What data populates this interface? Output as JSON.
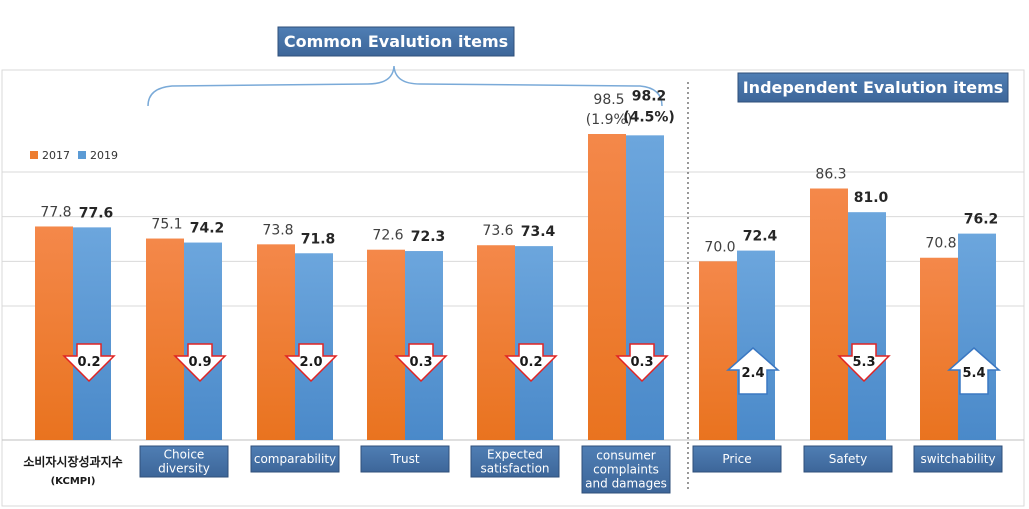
{
  "header_common": "Common Evalution items",
  "header_independent": "Independent Evalution items",
  "chart_data": {
    "type": "bar",
    "legend": {
      "position": "top-left"
    },
    "grid": true,
    "ylim": [
      30,
      100
    ],
    "colors": {
      "2017": "#ED7D31",
      "2019": "#5B9BD5"
    },
    "series": [
      {
        "name": "2017",
        "values": [
          77.8,
          75.1,
          73.8,
          72.6,
          73.6,
          98.5,
          70.0,
          86.3,
          70.8
        ]
      },
      {
        "name": "2019",
        "values": [
          77.6,
          74.2,
          71.8,
          72.3,
          73.4,
          98.2,
          72.4,
          81.0,
          76.2
        ]
      }
    ],
    "categories": [
      {
        "lines": [
          "소비자시장성과지수",
          "(KCMPI)"
        ],
        "boxed": false
      },
      {
        "lines": [
          "Choice",
          "diversity"
        ],
        "boxed": true
      },
      {
        "lines": [
          "comparability"
        ],
        "boxed": true
      },
      {
        "lines": [
          "Trust"
        ],
        "boxed": true
      },
      {
        "lines": [
          "Expected",
          "satisfaction"
        ],
        "boxed": true
      },
      {
        "lines": [
          "consumer",
          "complaints",
          "and damages"
        ],
        "boxed": true
      },
      {
        "lines": [
          "Price"
        ],
        "boxed": true
      },
      {
        "lines": [
          "Safety"
        ],
        "boxed": true
      },
      {
        "lines": [
          "switchability"
        ],
        "boxed": true
      }
    ],
    "bar_labels_2017": [
      "77.8",
      "75.1",
      "73.8",
      "72.6",
      "73.6",
      "98.5",
      "70.0",
      "86.3",
      "70.8"
    ],
    "bar_labels_2019": [
      "77.6",
      "74.2",
      "71.8",
      "72.3",
      "73.4",
      "98.2",
      "72.4",
      "81.0",
      "76.2"
    ],
    "pct_labels": {
      "5": {
        "2017": "(1.9%)",
        "2019": "(4.5%)"
      }
    },
    "changes": [
      {
        "value": "0.2",
        "direction": "down"
      },
      {
        "value": "0.9",
        "direction": "down"
      },
      {
        "value": "2.0",
        "direction": "down"
      },
      {
        "value": "0.3",
        "direction": "down"
      },
      {
        "value": "0.2",
        "direction": "down"
      },
      {
        "value": "0.3",
        "direction": "down"
      },
      {
        "value": "2.4",
        "direction": "up"
      },
      {
        "value": "5.3",
        "direction": "down"
      },
      {
        "value": "5.4",
        "direction": "up"
      }
    ]
  }
}
